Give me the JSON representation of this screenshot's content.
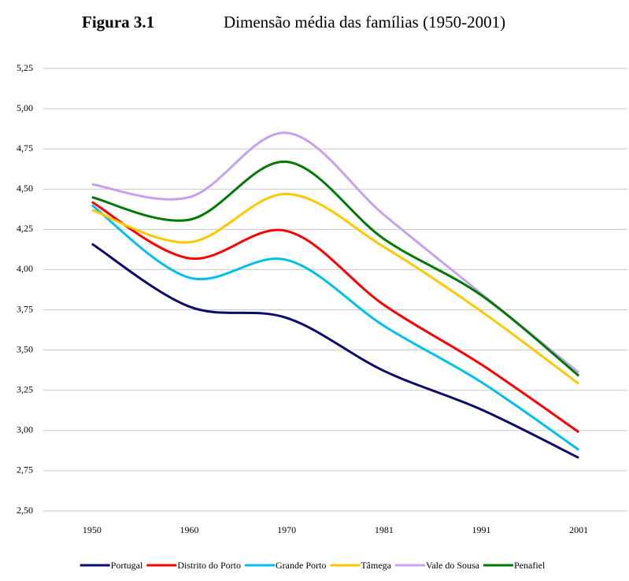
{
  "chart_data": {
    "type": "line",
    "figure_label": "Figura 3.1",
    "title": "Dimensão média das famílias (1950-2001)",
    "categories": [
      "1950",
      "1960",
      "1970",
      "1981",
      "1991",
      "2001"
    ],
    "series": [
      {
        "name": "Portugal",
        "color": "#0a0a6e",
        "values": [
          4.16,
          3.77,
          3.7,
          3.37,
          3.13,
          2.83
        ]
      },
      {
        "name": "Distrito do Porto",
        "color": "#ff0000",
        "values": [
          4.42,
          4.07,
          4.24,
          3.78,
          3.41,
          2.99
        ]
      },
      {
        "name": "Grande Porto",
        "color": "#00c0f0",
        "values": [
          4.4,
          3.95,
          4.06,
          3.65,
          3.3,
          2.88
        ]
      },
      {
        "name": "Tâmega",
        "color": "#ffc800",
        "values": [
          4.37,
          4.17,
          4.47,
          4.14,
          3.74,
          3.29
        ]
      },
      {
        "name": "Vale do Sousa",
        "color": "#c8a0f0",
        "values": [
          4.53,
          4.45,
          4.85,
          4.34,
          3.85,
          3.36
        ]
      },
      {
        "name": "Penafiel",
        "color": "#007a00",
        "values": [
          4.45,
          4.31,
          4.67,
          4.19,
          3.84,
          3.34
        ]
      }
    ],
    "ylim": [
      2.5,
      5.25
    ],
    "yticks": [
      {
        "value": 2.5,
        "label": "2,50"
      },
      {
        "value": 2.75,
        "label": "2,75"
      },
      {
        "value": 3.0,
        "label": "3,00"
      },
      {
        "value": 3.25,
        "label": "3,25"
      },
      {
        "value": 3.5,
        "label": "3,50"
      },
      {
        "value": 3.75,
        "label": "3,75"
      },
      {
        "value": 4.0,
        "label": "4,00"
      },
      {
        "value": 4.25,
        "label": "4,25"
      },
      {
        "value": 4.5,
        "label": "4,50"
      },
      {
        "value": 4.75,
        "label": "4,75"
      },
      {
        "value": 5.0,
        "label": "5,00"
      },
      {
        "value": 5.25,
        "label": "5,25"
      }
    ],
    "grid": true,
    "smooth": true,
    "legend": "bottom"
  }
}
